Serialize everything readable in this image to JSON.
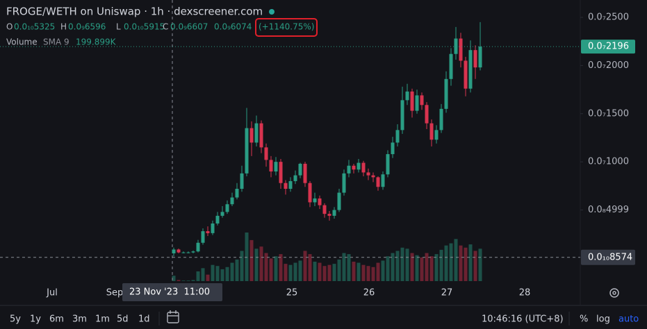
{
  "chart_data": {
    "type": "candlestick",
    "title": "FROGE/WETH on Uniswap · 1h · dexscreener.com",
    "ohlc_legend": {
      "labels": [
        "O",
        "H",
        "L",
        "C"
      ],
      "values": [
        "0.0₁₀5325",
        "0.0₉6596",
        "0.0₁₀5915",
        "0.0₉6607"
      ],
      "change": "0.0₉6074",
      "change_pct": "(+1140.75%)"
    },
    "volume_legend": {
      "name": "Volume",
      "sma": "SMA 9",
      "value": "199.899K"
    },
    "up_color": "#2a9d84",
    "down_color": "#d8334f",
    "open": [
      5e-10,
      9e-10,
      6e-10,
      6e-10,
      6e-10,
      7e-10,
      1.6e-09,
      2.8e-09,
      2.6e-09,
      3.6e-09,
      4.4e-09,
      4.8e-09,
      5.6e-09,
      6.3e-09,
      7.2e-09,
      8.8e-09,
      1.35e-08,
      1.2e-08,
      1.4e-08,
      1.15e-08,
      1.02e-08,
      9e-09,
      1e-08,
      7.8e-09,
      7.2e-09,
      8e-09,
      8.6e-09,
      9.8e-09,
      7.8e-09,
      5.8e-09,
      6.2e-09,
      5.5e-09,
      4.6e-09,
      4.4e-09,
      5e-09,
      6.8e-09,
      8.8e-09,
      9.6e-09,
      9.2e-09,
      9.9e-09,
      8.9e-09,
      8.6e-09,
      8.4e-09,
      7.4e-09,
      8.7e-09,
      1.08e-08,
      1.2e-08,
      1.33e-08,
      1.64e-08,
      1.73e-08,
      1.53e-08,
      1.69e-08,
      1.59e-08,
      1.4e-08,
      1.23e-08,
      1.33e-08,
      1.55e-08,
      1.86e-08,
      2.12e-08,
      2.28e-08,
      2.05e-08,
      1.76e-08,
      2.16e-08,
      1.98e-08
    ],
    "high": [
      1.1e-09,
      1e-09,
      7e-10,
      7e-10,
      8e-10,
      1.9e-09,
      3.1e-09,
      3.3e-09,
      3.9e-09,
      4.8e-09,
      5.4e-09,
      6e-09,
      6.8e-09,
      7.8e-09,
      9.6e-09,
      1.56e-08,
      1.42e-08,
      1.48e-08,
      1.43e-08,
      1.19e-08,
      1.06e-08,
      1.05e-08,
      1.03e-08,
      8.1e-09,
      8.4e-09,
      9.1e-09,
      9.9e-09,
      1e-08,
      8e-09,
      6.8e-09,
      6.5e-09,
      5.7e-09,
      4.9e-09,
      5.3e-09,
      7.2e-09,
      9.2e-09,
      1.02e-08,
      9.8e-09,
      1.03e-08,
      1.01e-08,
      9.3e-09,
      8.9e-09,
      8.5e-09,
      9e-09,
      1.12e-08,
      1.26e-08,
      1.39e-08,
      1.78e-08,
      1.81e-08,
      1.76e-08,
      1.75e-08,
      1.72e-08,
      1.62e-08,
      1.44e-08,
      1.38e-08,
      1.6e-08,
      1.94e-08,
      2.18e-08,
      2.4e-08,
      2.34e-08,
      2.09e-08,
      2.26e-08,
      2.21e-08,
      2.45e-08
    ],
    "low": [
      2e-10,
      5e-10,
      5e-10,
      5e-10,
      5e-10,
      6e-10,
      1.4e-09,
      2.3e-09,
      2.4e-09,
      3.4e-09,
      4.2e-09,
      4.6e-09,
      5.4e-09,
      6.1e-09,
      6.9e-09,
      8.5e-09,
      1.06e-08,
      1.16e-08,
      1.09e-08,
      9.5e-09,
      8.4e-09,
      8.6e-09,
      7.2e-09,
      6.6e-09,
      6.9e-09,
      7.7e-09,
      8.3e-09,
      7.4e-09,
      5.3e-09,
      5.4e-09,
      5.1e-09,
      4.2e-09,
      3.9e-09,
      4.1e-09,
      4.8e-09,
      6.5e-09,
      8.4e-09,
      8.8e-09,
      8.9e-09,
      8.5e-09,
      8.1e-09,
      7.9e-09,
      7e-09,
      7.1e-09,
      8.4e-09,
      1.04e-08,
      1.16e-08,
      1.29e-08,
      1.59e-08,
      1.46e-08,
      1.5e-08,
      1.54e-08,
      1.34e-08,
      1.16e-08,
      1.19e-08,
      1.3e-08,
      1.51e-08,
      1.79e-08,
      2.06e-08,
      1.98e-08,
      1.68e-08,
      1.72e-08,
      1.86e-08,
      1.95e-08
    ],
    "close": [
      9e-10,
      6e-10,
      6e-10,
      6e-10,
      7e-10,
      1.6e-09,
      2.8e-09,
      2.6e-09,
      3.6e-09,
      4.4e-09,
      4.8e-09,
      5.6e-09,
      6.3e-09,
      7.2e-09,
      8.8e-09,
      1.35e-08,
      1.2e-08,
      1.4e-08,
      1.15e-08,
      1.02e-08,
      9e-09,
      1e-08,
      7.8e-09,
      7.2e-09,
      8e-09,
      8.6e-09,
      9.8e-09,
      7.8e-09,
      5.8e-09,
      6.2e-09,
      5.5e-09,
      4.6e-09,
      4.4e-09,
      5e-09,
      6.8e-09,
      8.8e-09,
      9.6e-09,
      9.2e-09,
      9.9e-09,
      8.9e-09,
      8.6e-09,
      8.4e-09,
      7.4e-09,
      8.7e-09,
      1.08e-08,
      1.2e-08,
      1.33e-08,
      1.64e-08,
      1.73e-08,
      1.53e-08,
      1.69e-08,
      1.59e-08,
      1.4e-08,
      1.23e-08,
      1.33e-08,
      1.55e-08,
      1.86e-08,
      2.12e-08,
      2.28e-08,
      2.05e-08,
      1.76e-08,
      2.16e-08,
      1.98e-08,
      2.196e-08
    ],
    "volume": [
      50000,
      10000,
      5000,
      5000,
      10000,
      90000,
      120000,
      60000,
      150000,
      140000,
      110000,
      130000,
      170000,
      200000,
      280000,
      450000,
      380000,
      300000,
      320000,
      260000,
      210000,
      230000,
      250000,
      160000,
      150000,
      170000,
      190000,
      280000,
      250000,
      180000,
      170000,
      140000,
      150000,
      160000,
      200000,
      260000,
      250000,
      180000,
      170000,
      150000,
      140000,
      130000,
      170000,
      190000,
      230000,
      260000,
      280000,
      310000,
      300000,
      260000,
      240000,
      220000,
      260000,
      230000,
      250000,
      290000,
      330000,
      350000,
      390000,
      330000,
      310000,
      340000,
      280000,
      300000
    ],
    "ylim": [
      -2.38e-09,
      2.68e-08
    ],
    "yticks": [
      {
        "value": 2.5e-08,
        "label": "0.0₇2500"
      },
      {
        "value": 2e-08,
        "label": "0.0₇2000"
      },
      {
        "value": 1.5e-08,
        "label": "0.0₇1500"
      },
      {
        "value": 1e-08,
        "label": "0.0₇1000"
      },
      {
        "value": 4.999e-09,
        "label": "0.0₈4999"
      }
    ],
    "last_price": {
      "value": 2.196e-08,
      "label": "0.0₇2196"
    },
    "crosshair": {
      "value": 8.574e-11,
      "label": "0.0₁₀8574",
      "time": "23 Nov '23  11:00"
    },
    "xtick_labels": [
      "Jul",
      "Sep",
      "25",
      "26",
      "27",
      "28"
    ]
  },
  "ui": {
    "timeframes": [
      "5y",
      "1y",
      "6m",
      "3m",
      "1m",
      "5d",
      "1d"
    ],
    "clock": "10:46:16 (UTC+8)",
    "scale_options": [
      "%",
      "log",
      "auto"
    ]
  }
}
